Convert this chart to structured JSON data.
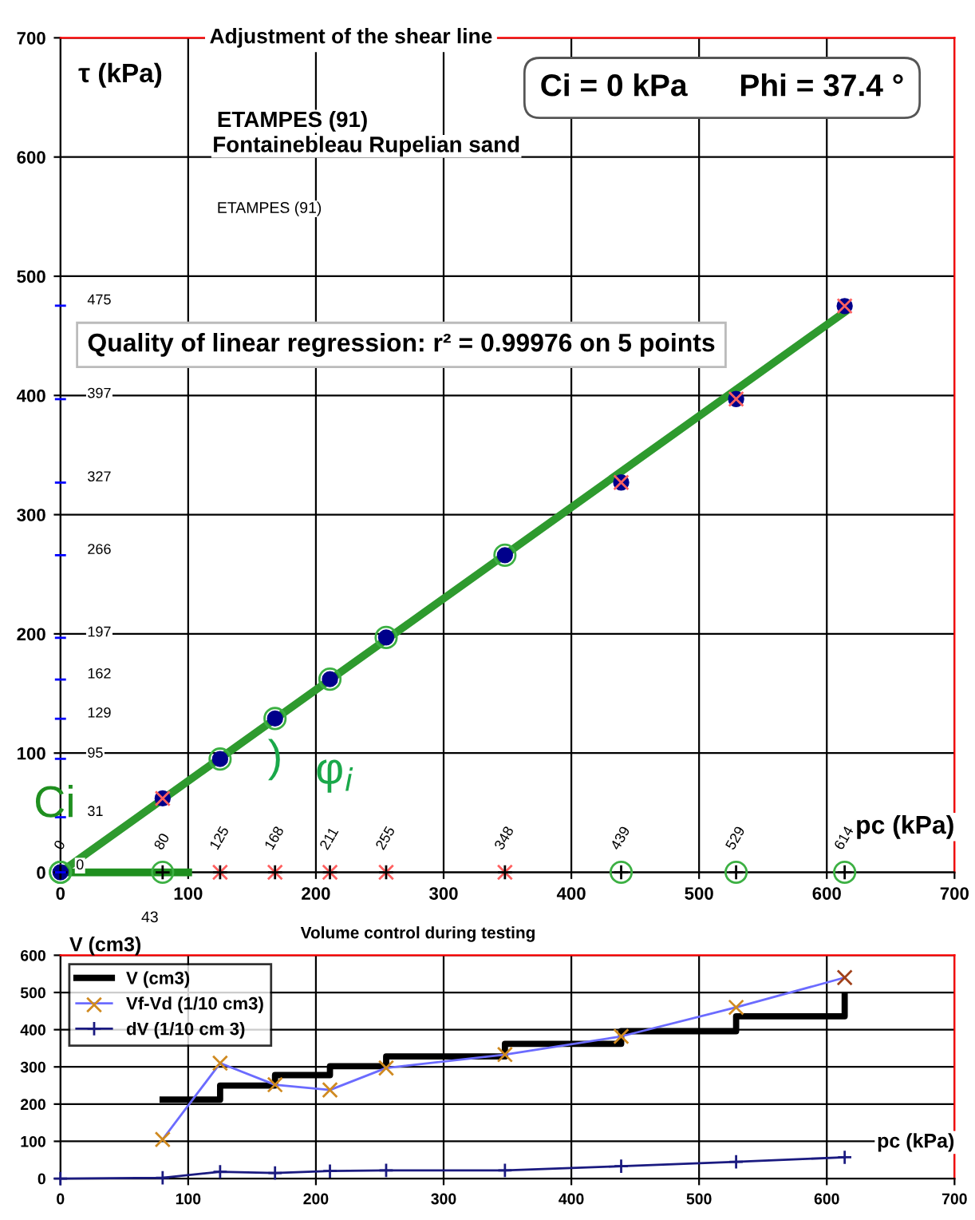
{
  "chart_data": [
    {
      "type": "scatter",
      "title": "Adjustment of the shear line",
      "xlabel": "pc (kPa)",
      "ylabel": "τ (kPa)",
      "xlim": [
        0,
        700
      ],
      "xticks": [
        0,
        100,
        200,
        300,
        400,
        500,
        600,
        700
      ],
      "ylim": [
        0,
        700
      ],
      "yticks": [
        0,
        100,
        200,
        300,
        400,
        500,
        600,
        700
      ],
      "grid": true,
      "legend": false,
      "series": [
        {
          "type": "line",
          "color": "#2e9a2e",
          "line_style": "solid",
          "marker": "none",
          "x": [
            0,
            614
          ],
          "values": [
            0,
            470
          ]
        },
        {
          "type": "line",
          "color": "#1f8f1f",
          "line_style": "solid",
          "marker": "none",
          "x": [
            0,
            100
          ],
          "values": [
            0,
            0
          ]
        },
        {
          "color": "#00008b",
          "marker": "circle",
          "x": [
            0,
            80,
            125,
            168,
            211,
            255,
            348,
            439,
            529,
            614
          ],
          "values": [
            0,
            62,
            95,
            129,
            162,
            197,
            266,
            327,
            397,
            475
          ]
        },
        {
          "color": "#3cb043",
          "marker": "circle",
          "x": [
            0,
            125,
            168,
            211,
            255,
            348
          ],
          "values": [
            0,
            95,
            129,
            162,
            197,
            266
          ]
        },
        {
          "color": "#ff6060",
          "marker": "cross",
          "x": [
            80,
            439,
            529,
            614
          ],
          "values": [
            62,
            327,
            397,
            475
          ]
        },
        {
          "color": "#3cb043",
          "marker": "circle",
          "x": [
            0,
            80,
            439,
            529,
            614
          ],
          "values": [
            0,
            0,
            0,
            0,
            0
          ]
        },
        {
          "color": "#ff6060",
          "marker": "cross",
          "x": [
            125,
            168,
            211,
            255,
            348
          ],
          "values": [
            0,
            0,
            0,
            0,
            0
          ]
        },
        {
          "color": "#000000",
          "marker": "plus",
          "x": [
            0,
            80,
            125,
            168,
            211,
            255,
            348,
            439,
            529,
            614
          ],
          "values": [
            0,
            0,
            0,
            0,
            0,
            0,
            0,
            0,
            0,
            0
          ]
        }
      ],
      "annotations": [
        "Ci = 0 kPa      Phi = 37.4 °",
        "ETAMPES (91)",
        "Fontainebleau Rupelian sand",
        "ETAMPES (91)",
        "Quality of linear regression: r² = 0.99976 on 5 points",
        "Ci",
        ")",
        "φ$_{i}$",
        "43",
        "31",
        "475",
        "397",
        "327",
        "266",
        "197",
        "162",
        "129",
        "95",
        {
          "text": "0",
          "x": 0,
          "y": 0
        },
        {
          "text": "0",
          "x": 0,
          "y": 0
        },
        {
          "text": "80",
          "x": 80,
          "y": 0
        },
        {
          "text": "125",
          "x": 125,
          "y": 0
        },
        {
          "text": "168",
          "x": 168,
          "y": 0
        },
        {
          "text": "211",
          "x": 211,
          "y": 0
        },
        {
          "text": "255",
          "x": 255,
          "y": 0
        },
        {
          "text": "348",
          "x": 348,
          "y": 0
        },
        {
          "text": "439",
          "x": 439,
          "y": 0
        },
        {
          "text": "529",
          "x": 529,
          "y": 0
        },
        {
          "text": "614",
          "x": 614,
          "y": 0
        }
      ]
    },
    {
      "type": "line",
      "title": "Volume control during testing",
      "xlabel": "pc (kPa)",
      "ylabel": "V (cm3)",
      "xlim": [
        0,
        700
      ],
      "xticks": [
        0,
        100,
        200,
        300,
        400,
        500,
        600,
        700
      ],
      "ylim": [
        0,
        600
      ],
      "yticks": [
        0,
        100,
        200,
        300,
        400,
        500,
        600
      ],
      "grid": true,
      "legend": "top left",
      "series": [
        {
          "type": "step",
          "name": "V (cm3)",
          "color": "#000000",
          "marker": "none",
          "x": [
            80,
            125,
            168,
            211,
            255,
            348,
            439,
            529,
            614
          ],
          "values": [
            212,
            250,
            278,
            302,
            328,
            362,
            396,
            436,
            490
          ]
        },
        {
          "name": "Vf-Vd (1/10 cm3)",
          "color": "#6b6bff",
          "marker": "cross",
          "colors": [
            "#d08a20",
            "#d08a20",
            "#d08a20",
            "#d08a20",
            "#d08a20",
            "#d08a20",
            "#d08a20",
            "#d08a20",
            "#a0401a"
          ],
          "x": [
            80,
            125,
            168,
            211,
            255,
            348,
            439,
            529,
            614
          ],
          "values": [
            105,
            310,
            252,
            238,
            297,
            333,
            382,
            460,
            540
          ]
        },
        {
          "name": "dV (1/10 cm 3)",
          "color": "#1a1a80",
          "marker": "plus",
          "x": [
            0,
            80,
            125,
            168,
            211,
            255,
            348,
            439,
            529,
            614
          ],
          "values": [
            0,
            2,
            18,
            15,
            20,
            22,
            22,
            33,
            45,
            57
          ]
        }
      ]
    }
  ]
}
